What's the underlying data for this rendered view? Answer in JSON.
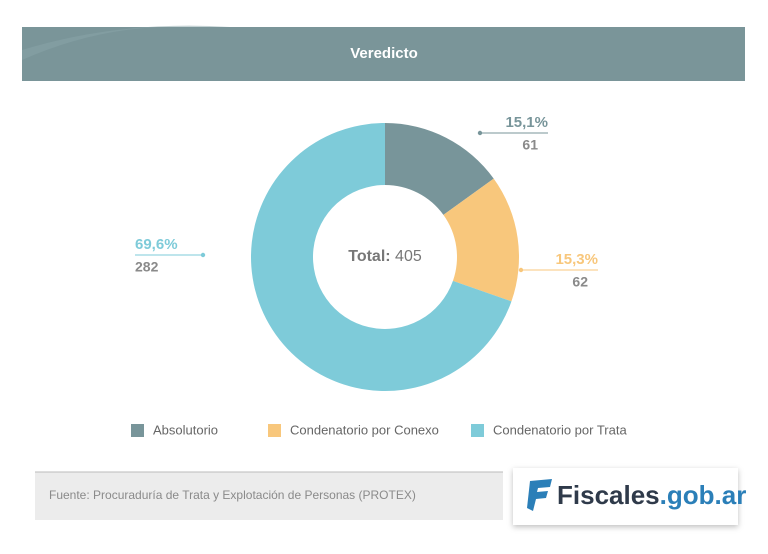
{
  "chart_data": {
    "type": "donut",
    "title": "Veredicto",
    "categories": [
      "Absolutorio",
      "Condenatorio por Conexo",
      "Condenatorio por Trata"
    ],
    "values": [
      61,
      62,
      282
    ],
    "percentage_labels": [
      "15,1%",
      "15,3%",
      "69,6%"
    ],
    "colors": [
      "#78959a",
      "#f8c77c",
      "#7ecbd9"
    ],
    "total_label": "Total:",
    "total": 405,
    "legend": "bottom"
  },
  "source": "Fuente: Procuraduría de Trata y Explotación de Personas (PROTEX)",
  "logo": {
    "name": "Fiscales",
    "domain": ".gob.ar"
  }
}
